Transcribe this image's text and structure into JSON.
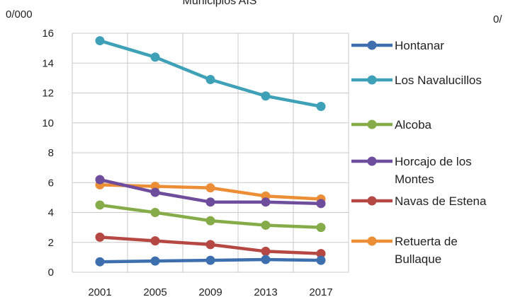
{
  "chart_data": {
    "type": "line",
    "title": "Municipios AIS",
    "y_unit_left": "0/000",
    "y_unit_right": "0/",
    "xlabel": "",
    "ylabel": "",
    "ylim": [
      0,
      16
    ],
    "y_ticks": [
      0,
      2,
      4,
      6,
      8,
      10,
      12,
      14,
      16
    ],
    "categories": [
      "2001",
      "2005",
      "2009",
      "2013",
      "2017"
    ],
    "grid": true,
    "legend_position": "right",
    "series": [
      {
        "name": "Hontanar",
        "label_lines": [
          "Hontanar"
        ],
        "color": "#3d6faf",
        "values": [
          0.7,
          0.75,
          0.8,
          0.85,
          0.8
        ]
      },
      {
        "name": "Los Navalucillos",
        "label_lines": [
          "Los Navalucillos"
        ],
        "color": "#3ea1b7",
        "values": [
          15.5,
          14.4,
          12.9,
          11.8,
          11.1
        ]
      },
      {
        "name": "Alcoba",
        "label_lines": [
          "Alcoba"
        ],
        "color": "#86ac49",
        "values": [
          4.5,
          4.0,
          3.45,
          3.15,
          3.0
        ]
      },
      {
        "name": "Horcajo de los Montes",
        "label_lines": [
          "Horcajo de los",
          "Montes"
        ],
        "color": "#6d4d9c",
        "values": [
          6.2,
          5.35,
          4.7,
          4.7,
          4.6
        ]
      },
      {
        "name": "Navas de Estena",
        "label_lines": [
          "Navas de Estena"
        ],
        "color": "#b54843",
        "values": [
          2.35,
          2.1,
          1.85,
          1.4,
          1.25
        ]
      },
      {
        "name": "Retuerta de Bullaque",
        "label_lines": [
          "Retuerta de",
          "Bullaque"
        ],
        "color": "#eb8e36",
        "values": [
          5.85,
          5.75,
          5.65,
          5.1,
          4.9
        ]
      }
    ]
  }
}
